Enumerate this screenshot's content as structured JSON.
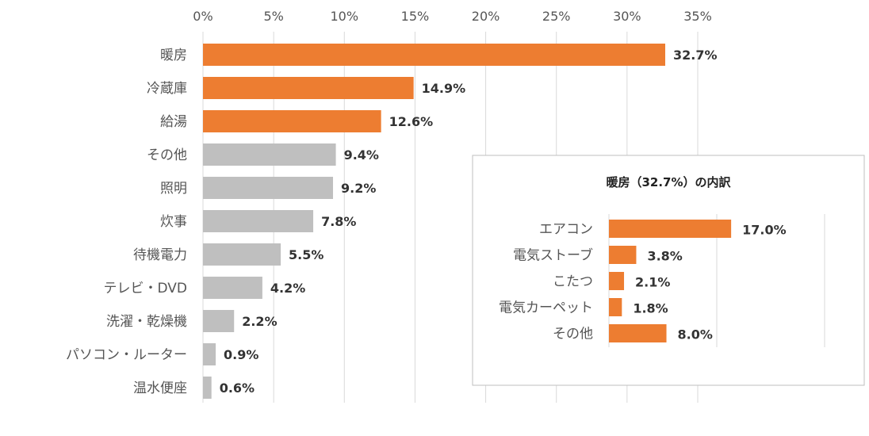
{
  "chart_data": [
    {
      "type": "bar",
      "orientation": "horizontal",
      "title": "",
      "xlabel": "",
      "ylabel": "",
      "xlim": [
        0,
        35
      ],
      "ticks": [
        "0%",
        "5%",
        "10%",
        "15%",
        "20%",
        "25%",
        "30%",
        "35%"
      ],
      "tick_values": [
        0,
        5,
        10,
        15,
        20,
        25,
        30,
        35
      ],
      "grid": true,
      "highlight_color": "#ED7D31",
      "base_color": "#BFBFBF",
      "categories": [
        "暖房",
        "冷蔵庫",
        "給湯",
        "その他",
        "照明",
        "炊事",
        "待機電力",
        "テレビ・DVD",
        "洗濯・乾燥機",
        "パソコン・ルーター",
        "温水便座"
      ],
      "values": [
        32.7,
        14.9,
        12.6,
        9.4,
        9.2,
        7.8,
        5.5,
        4.2,
        2.2,
        0.9,
        0.6
      ],
      "value_labels": [
        "32.7%",
        "14.9%",
        "12.6%",
        "9.4%",
        "9.2%",
        "7.8%",
        "5.5%",
        "4.2%",
        "2.2%",
        "0.9%",
        "0.6%"
      ],
      "highlighted": [
        true,
        true,
        true,
        false,
        false,
        false,
        false,
        false,
        false,
        false,
        false
      ]
    },
    {
      "type": "bar",
      "orientation": "horizontal",
      "title": "暖房（32.7%）の内訳",
      "xlim": [
        0,
        30
      ],
      "tick_values": [
        0,
        15,
        30
      ],
      "grid": true,
      "color": "#ED7D31",
      "categories": [
        "エアコン",
        "電気ストーブ",
        "こたつ",
        "電気カーペット",
        "その他"
      ],
      "values": [
        17.0,
        3.8,
        2.1,
        1.8,
        8.0
      ],
      "value_labels": [
        "17.0%",
        "3.8%",
        "2.1%",
        "1.8%",
        "8.0%"
      ]
    }
  ]
}
